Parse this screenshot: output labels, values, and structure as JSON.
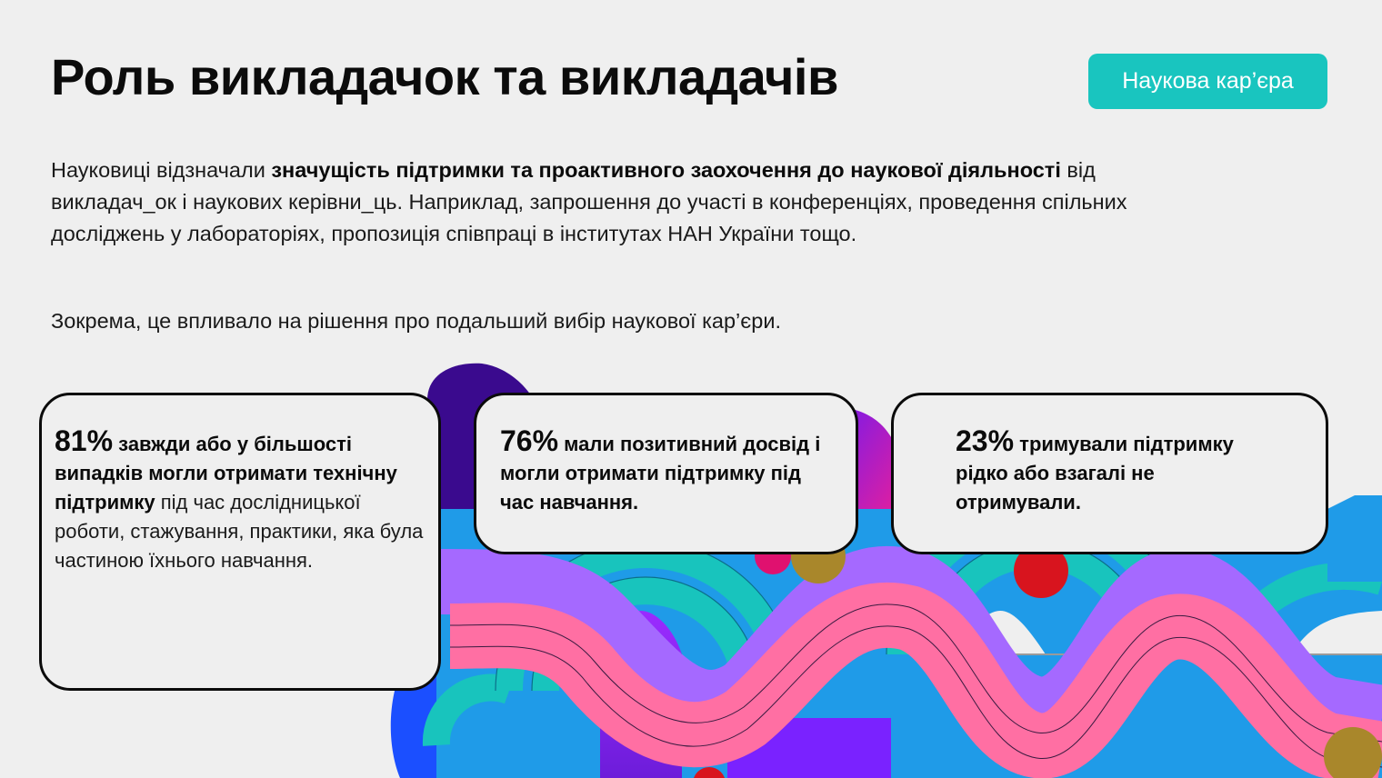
{
  "header": {
    "title": "Роль викладачок та викладачів",
    "tag": "Наукова кар’єра"
  },
  "intro": {
    "p1_start": "Науковиці відзначали ",
    "p1_bold": "значущість підтримки та проактивного заохочення до наукової діяльності",
    "p1_rest": " від викладач_ок і наукових керівни_ць. Наприклад, запрошення до участі в конференціях, проведення спільних досліджень у лабораторіях, пропозиція співпраці в інститутах НАН України тощо.",
    "p2": "Зокрема, це впливало на рішення про подальший вибір наукової кар’єри."
  },
  "cards": [
    {
      "percent": "81%",
      "bold": "завжди або у більшості випадків могли отримати технічну підтримку",
      "rest": " під час дослідницької роботи, стажування, практики, яка була частиною їхнього навчання."
    },
    {
      "percent": "76%",
      "bold": "мали позитивний досвід і могли отримати підтримку під час навчання.",
      "rest": ""
    },
    {
      "percent": "23%",
      "bold": "тримували підтримку рідко або взагалі не отримували.",
      "rest": ""
    }
  ],
  "colors": {
    "accent_teal": "#19c5bf",
    "pink": "#ff6fa3",
    "violet": "#a569ff",
    "blue": "#1f9be8",
    "deep_blue": "#1b4fff",
    "indigo": "#3a0a8e",
    "red": "#d8141e",
    "gold": "#a9872b"
  }
}
